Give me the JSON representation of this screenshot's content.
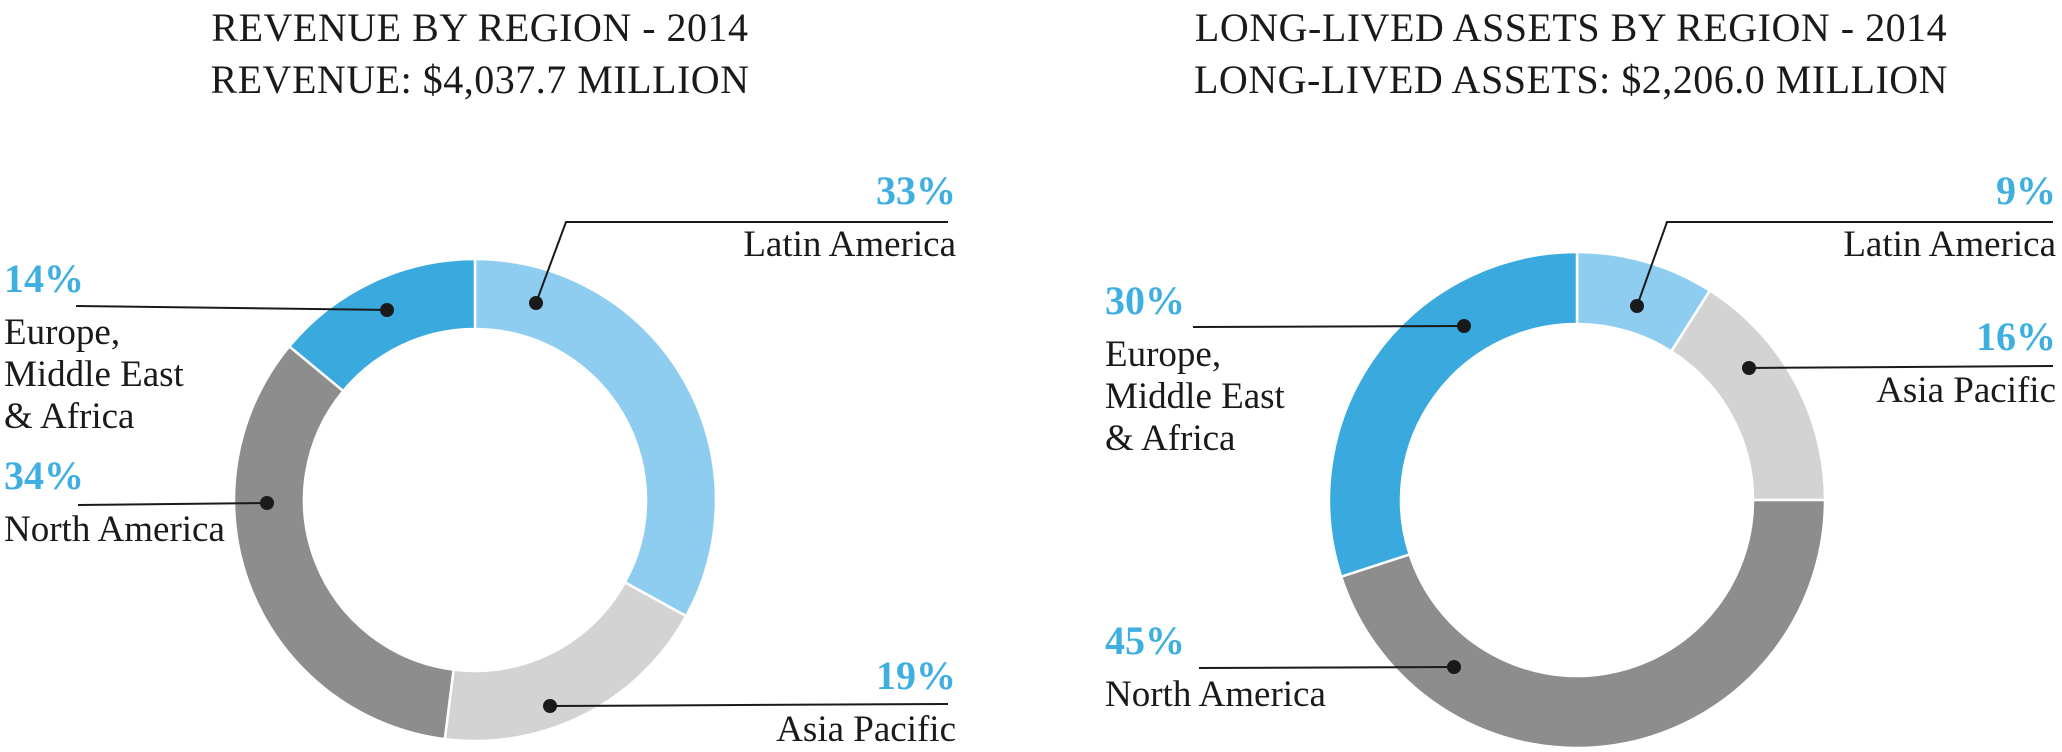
{
  "page": {
    "background": "#ffffff"
  },
  "charts": [
    {
      "title": [
        "REVENUE BY REGION - 2014",
        "REVENUE: $4,037.7 MILLION"
      ],
      "labels": {
        "latin_america": {
          "percent": "33%",
          "name": "Latin America"
        },
        "asia_pacific": {
          "percent": "19%",
          "name": "Asia Pacific"
        },
        "north_america": {
          "percent": "34%",
          "name": "North America"
        },
        "emea": {
          "percent": "14%",
          "name_lines": [
            "Europe,",
            "Middle East",
            "& Africa"
          ]
        }
      }
    },
    {
      "title": [
        "LONG-LIVED ASSETS BY REGION - 2014",
        "LONG-LIVED ASSETS: $2,206.0 MILLION"
      ],
      "labels": {
        "latin_america": {
          "percent": "9%",
          "name": "Latin America"
        },
        "asia_pacific": {
          "percent": "16%",
          "name": "Asia Pacific"
        },
        "north_america": {
          "percent": "45%",
          "name": "North America"
        },
        "emea": {
          "percent": "30%",
          "name_lines": [
            "Europe,",
            "Middle East",
            "& Africa"
          ]
        }
      }
    }
  ],
  "colors": {
    "latin_america": "#8ecdf0",
    "asia_pacific": "#d3d3d3",
    "north_america": "#8d8d8d",
    "emea": "#39a9de",
    "percent_text": "#3fafe0",
    "leader_line": "#1a1a1a",
    "title_text": "#1a1a1a"
  },
  "chart_data": [
    {
      "type": "pie",
      "subtype": "donut",
      "title": "REVENUE BY REGION - 2014",
      "subtitle": "REVENUE: $4,037.7 MILLION",
      "unit": "%",
      "start_angle": "top",
      "direction": "clockwise",
      "legend_position": "callout-labels",
      "categories": [
        "Latin America",
        "Asia Pacific",
        "North America",
        "Europe, Middle East & Africa"
      ],
      "values": [
        33,
        19,
        34,
        14
      ],
      "colors": [
        "#8ecdf0",
        "#d3d3d3",
        "#8d8d8d",
        "#39a9de"
      ]
    },
    {
      "type": "pie",
      "subtype": "donut",
      "title": "LONG-LIVED ASSETS BY REGION - 2014",
      "subtitle": "LONG-LIVED ASSETS: $2,206.0 MILLION",
      "unit": "%",
      "start_angle": "top",
      "direction": "clockwise",
      "legend_position": "callout-labels",
      "categories": [
        "Latin America",
        "Asia Pacific",
        "North America",
        "Europe, Middle East & Africa"
      ],
      "values": [
        9,
        16,
        45,
        30
      ],
      "colors": [
        "#8ecdf0",
        "#d3d3d3",
        "#8d8d8d",
        "#39a9de"
      ]
    }
  ]
}
